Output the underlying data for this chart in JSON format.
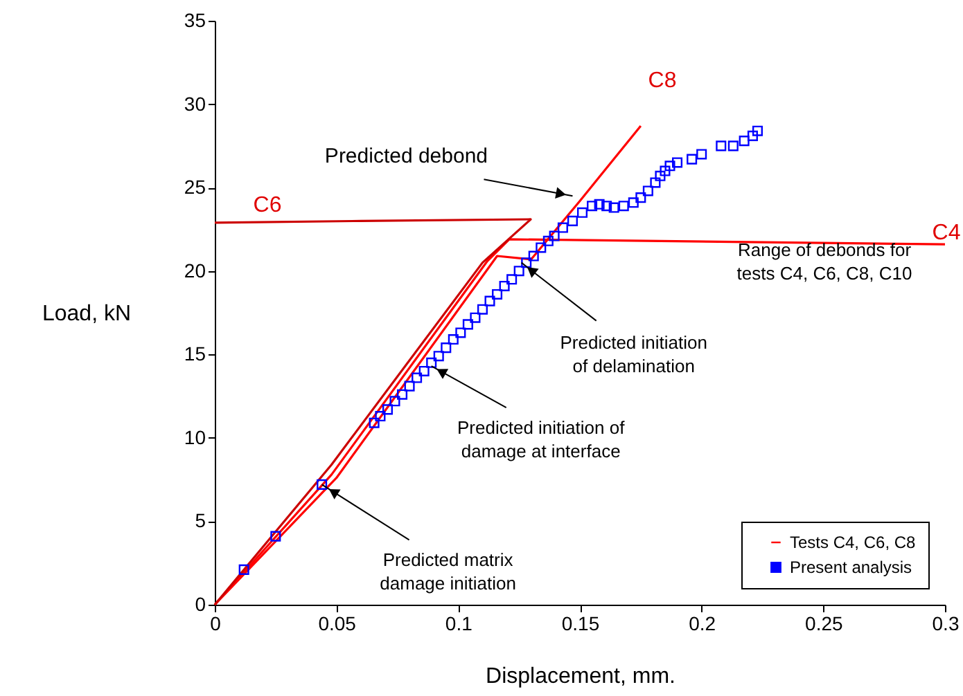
{
  "chart_data": {
    "type": "line",
    "xlabel": "Displacement, mm.",
    "ylabel": "Load, kN",
    "xlim": [
      0,
      0.3
    ],
    "ylim": [
      0,
      35
    ],
    "xticks": [
      0,
      0.05,
      0.1,
      0.15,
      0.2,
      0.25,
      0.3
    ],
    "yticks": [
      0,
      5,
      10,
      15,
      20,
      25,
      30,
      35
    ],
    "grid": false,
    "legend": "bottom right",
    "line_style": "solid",
    "series": [
      {
        "name": "Tests C4, C6, C8",
        "color": "#ff0000",
        "x": [
          0,
          0.048,
          0.112,
          0.121,
          0.3
        ],
        "values": [
          0,
          7.8,
          20.6,
          21.9,
          21.6
        ]
      },
      {
        "color": "#ff0000",
        "x": [
          0,
          0.05,
          0.116,
          0.13,
          0.15,
          0.175
        ],
        "values": [
          0,
          7.6,
          20.9,
          20.7,
          24.2,
          28.7
        ]
      },
      {
        "color": "#cc0000",
        "x": [
          0,
          0.048,
          0.11,
          0.1298,
          0.06,
          0
        ],
        "values": [
          0,
          8.4,
          20.5,
          23.1,
          23.0,
          22.9
        ]
      },
      {
        "name": "Present analysis",
        "type": "scatter",
        "marker": "square",
        "color": "#0000ff",
        "x": [
          0.012,
          0.025,
          0.044,
          0.0655,
          0.068,
          0.071,
          0.074,
          0.077,
          0.08,
          0.083,
          0.086,
          0.089,
          0.092,
          0.095,
          0.098,
          0.101,
          0.104,
          0.107,
          0.11,
          0.113,
          0.116,
          0.119,
          0.122,
          0.125,
          0.128,
          0.131,
          0.134,
          0.137,
          0.1395,
          0.143,
          0.147,
          0.151,
          0.155,
          0.158,
          0.161,
          0.164,
          0.168,
          0.172,
          0.175,
          0.178,
          0.181,
          0.183,
          0.185,
          0.187,
          0.19,
          0.196,
          0.2,
          0.208,
          0.213,
          0.2175,
          0.221,
          0.223
        ],
        "values": [
          2.1,
          4.1,
          7.2,
          10.9,
          11.3,
          11.7,
          12.2,
          12.6,
          13.1,
          13.6,
          14.0,
          14.5,
          14.9,
          15.4,
          15.9,
          16.3,
          16.8,
          17.2,
          17.7,
          18.2,
          18.6,
          19.1,
          19.5,
          20.0,
          20.5,
          20.9,
          21.4,
          21.8,
          22.1,
          22.6,
          23.0,
          23.5,
          23.9,
          24.0,
          23.9,
          23.8,
          23.9,
          24.1,
          24.4,
          24.8,
          25.3,
          25.7,
          26.0,
          26.3,
          26.5,
          26.7,
          27.0,
          27.5,
          27.5,
          27.8,
          28.1,
          28.4
        ]
      }
    ],
    "annotations": [
      "C6",
      "C8",
      "C4",
      {
        "text": "Predicted debond",
        "x": 0.147,
        "y": 24.5
      },
      "Range of debonds for\ntests C4, C6, C8, C10",
      {
        "text": "Predicted initiation\nof delamination",
        "x": 0.126,
        "y": 20.5
      },
      {
        "text": "Predicted initiation of\ndamage at interface",
        "x": 0.089,
        "y": 14.3
      },
      {
        "text": "Predicted matrix\ndamage initiation",
        "x": 0.044,
        "y": 7.2
      }
    ]
  }
}
